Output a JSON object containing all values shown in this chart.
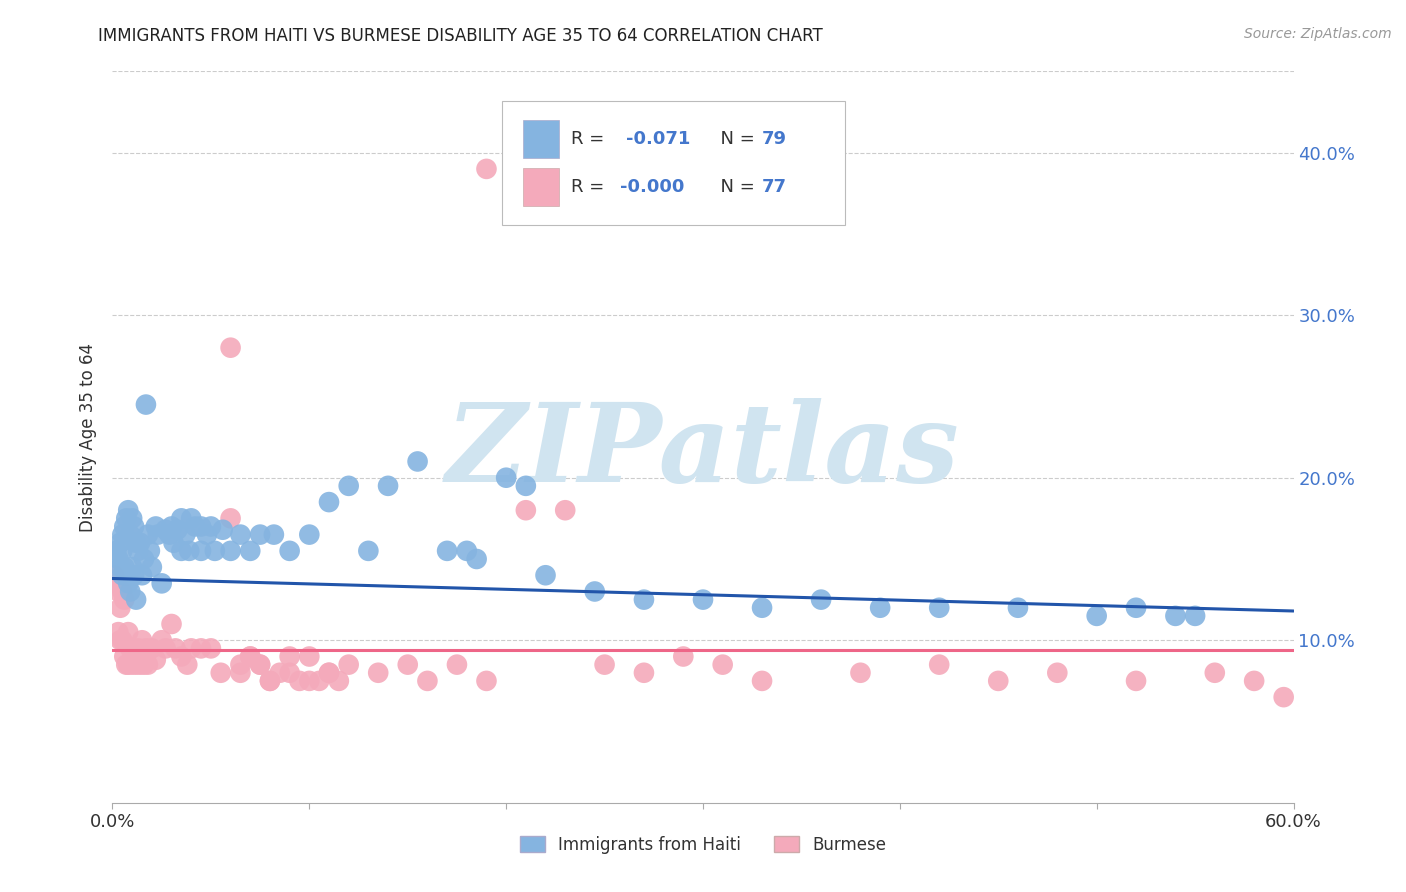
{
  "title": "IMMIGRANTS FROM HAITI VS BURMESE DISABILITY AGE 35 TO 64 CORRELATION CHART",
  "source": "Source: ZipAtlas.com",
  "ylabel": "Disability Age 35 to 64",
  "xmin": 0.0,
  "xmax": 0.6,
  "ymin": 0.0,
  "ymax": 0.45,
  "yticks": [
    0.1,
    0.2,
    0.3,
    0.4
  ],
  "ytick_labels": [
    "10.0%",
    "20.0%",
    "30.0%",
    "40.0%"
  ],
  "color_haiti": "#85B4E0",
  "color_burmese": "#F4AABB",
  "color_haiti_line": "#2255AA",
  "color_burmese_line": "#EE6688",
  "watermark": "ZIPatlas",
  "watermark_color": "#D0E4F0",
  "grid_color": "#CCCCCC",
  "legend_text_dark": "#333333",
  "legend_text_blue": "#4477CC",
  "haiti_x": [
    0.002,
    0.003,
    0.004,
    0.004,
    0.005,
    0.005,
    0.005,
    0.006,
    0.006,
    0.007,
    0.007,
    0.008,
    0.008,
    0.009,
    0.009,
    0.01,
    0.01,
    0.011,
    0.011,
    0.012,
    0.012,
    0.013,
    0.014,
    0.015,
    0.016,
    0.017,
    0.018,
    0.019,
    0.02,
    0.022,
    0.023,
    0.025,
    0.027,
    0.029,
    0.031,
    0.033,
    0.035,
    0.037,
    0.039,
    0.042,
    0.045,
    0.048,
    0.052,
    0.056,
    0.06,
    0.065,
    0.07,
    0.075,
    0.082,
    0.09,
    0.1,
    0.11,
    0.12,
    0.13,
    0.14,
    0.155,
    0.17,
    0.185,
    0.2,
    0.22,
    0.245,
    0.27,
    0.3,
    0.33,
    0.36,
    0.39,
    0.42,
    0.46,
    0.5,
    0.52,
    0.54,
    0.55,
    0.03,
    0.035,
    0.04,
    0.045,
    0.05,
    0.18,
    0.21
  ],
  "haiti_y": [
    0.155,
    0.15,
    0.145,
    0.16,
    0.155,
    0.14,
    0.165,
    0.17,
    0.145,
    0.175,
    0.14,
    0.18,
    0.135,
    0.165,
    0.13,
    0.175,
    0.145,
    0.17,
    0.14,
    0.16,
    0.125,
    0.155,
    0.16,
    0.14,
    0.15,
    0.245,
    0.165,
    0.155,
    0.145,
    0.17,
    0.165,
    0.135,
    0.168,
    0.165,
    0.16,
    0.168,
    0.155,
    0.165,
    0.155,
    0.17,
    0.155,
    0.165,
    0.155,
    0.168,
    0.155,
    0.165,
    0.155,
    0.165,
    0.165,
    0.155,
    0.165,
    0.185,
    0.195,
    0.155,
    0.195,
    0.21,
    0.155,
    0.15,
    0.2,
    0.14,
    0.13,
    0.125,
    0.125,
    0.12,
    0.125,
    0.12,
    0.12,
    0.12,
    0.115,
    0.12,
    0.115,
    0.115,
    0.17,
    0.175,
    0.175,
    0.17,
    0.17,
    0.155,
    0.195
  ],
  "burmese_x": [
    0.001,
    0.002,
    0.003,
    0.003,
    0.004,
    0.004,
    0.005,
    0.005,
    0.006,
    0.006,
    0.007,
    0.008,
    0.008,
    0.009,
    0.01,
    0.011,
    0.012,
    0.013,
    0.014,
    0.015,
    0.016,
    0.017,
    0.018,
    0.02,
    0.022,
    0.025,
    0.027,
    0.03,
    0.032,
    0.035,
    0.038,
    0.04,
    0.045,
    0.05,
    0.055,
    0.06,
    0.065,
    0.07,
    0.075,
    0.08,
    0.09,
    0.1,
    0.11,
    0.12,
    0.135,
    0.15,
    0.16,
    0.175,
    0.19,
    0.21,
    0.23,
    0.19,
    0.25,
    0.27,
    0.29,
    0.31,
    0.33,
    0.38,
    0.42,
    0.45,
    0.48,
    0.52,
    0.56,
    0.58,
    0.595,
    0.06,
    0.065,
    0.07,
    0.075,
    0.08,
    0.085,
    0.09,
    0.095,
    0.1,
    0.105,
    0.11,
    0.115
  ],
  "burmese_y": [
    0.14,
    0.135,
    0.13,
    0.105,
    0.12,
    0.1,
    0.13,
    0.1,
    0.125,
    0.09,
    0.085,
    0.105,
    0.085,
    0.095,
    0.085,
    0.09,
    0.085,
    0.095,
    0.085,
    0.1,
    0.085,
    0.095,
    0.085,
    0.095,
    0.088,
    0.1,
    0.095,
    0.11,
    0.095,
    0.09,
    0.085,
    0.095,
    0.095,
    0.095,
    0.08,
    0.28,
    0.08,
    0.09,
    0.085,
    0.075,
    0.08,
    0.075,
    0.08,
    0.085,
    0.08,
    0.085,
    0.075,
    0.085,
    0.075,
    0.18,
    0.18,
    0.39,
    0.085,
    0.08,
    0.09,
    0.085,
    0.075,
    0.08,
    0.085,
    0.075,
    0.08,
    0.075,
    0.08,
    0.075,
    0.065,
    0.175,
    0.085,
    0.09,
    0.085,
    0.075,
    0.08,
    0.09,
    0.075,
    0.09,
    0.075,
    0.08,
    0.075
  ],
  "haiti_trend_x": [
    0.0,
    0.6
  ],
  "haiti_trend_y": [
    0.138,
    0.118
  ],
  "burmese_trend_x": [
    0.0,
    0.6
  ],
  "burmese_trend_y": [
    0.094,
    0.094
  ]
}
